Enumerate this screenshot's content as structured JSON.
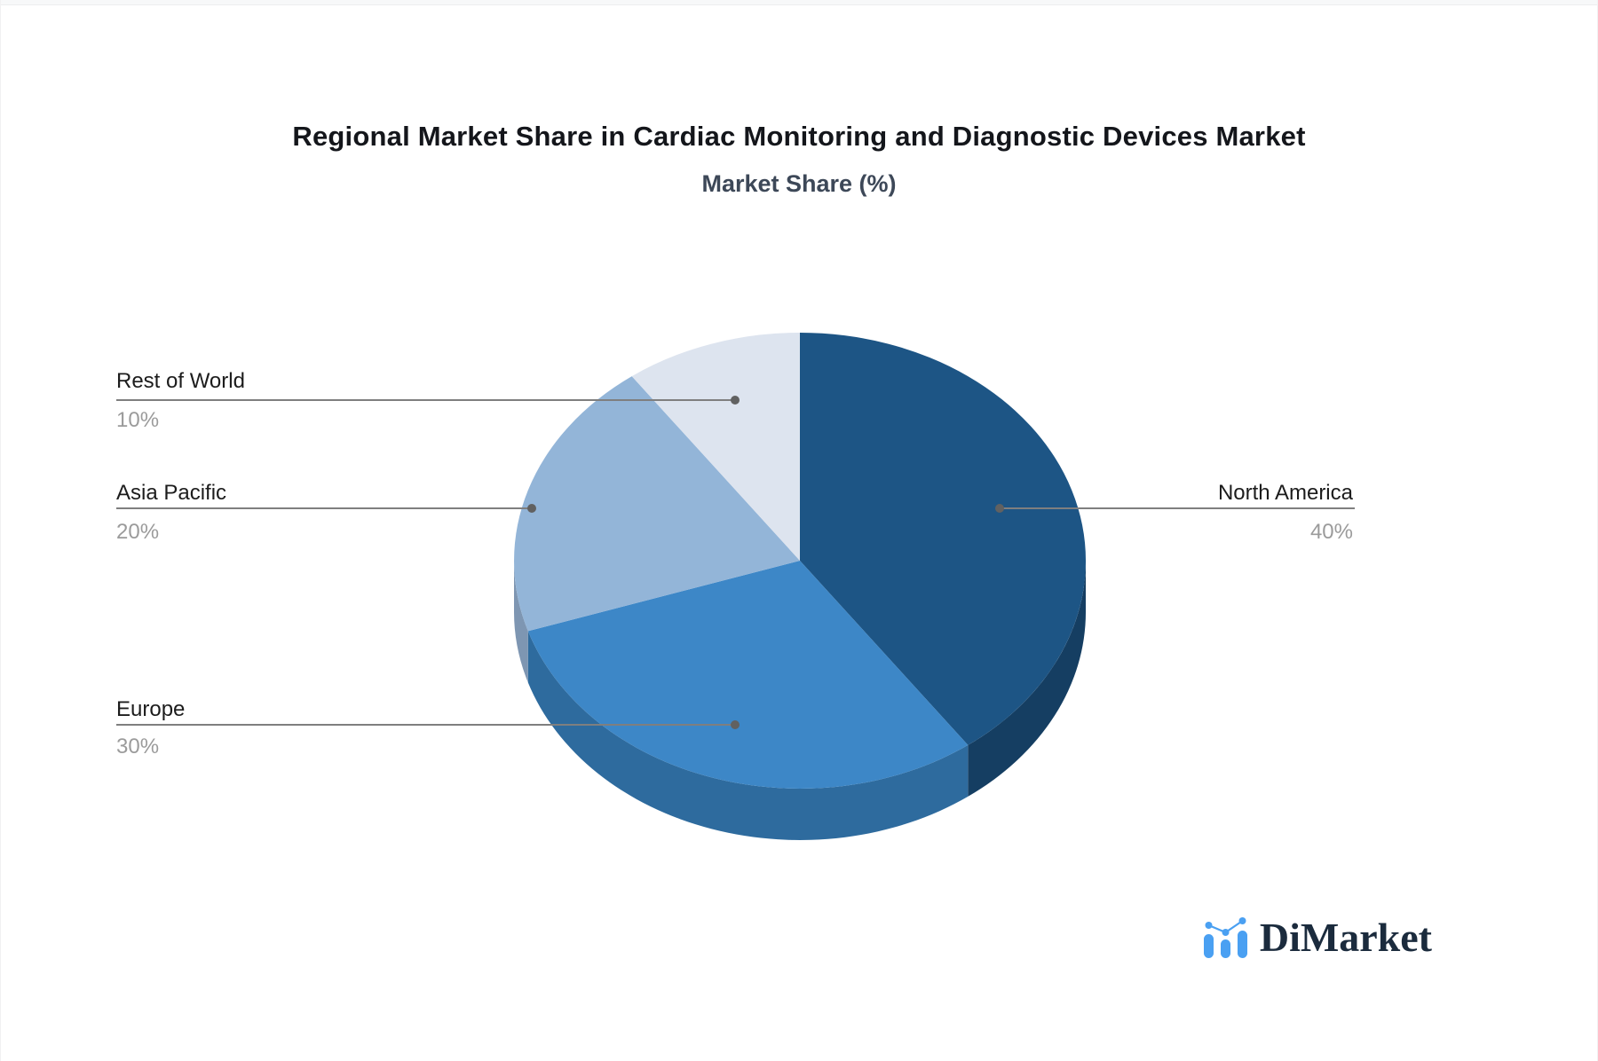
{
  "header": {
    "title": "Regional Market Share in Cardiac Monitoring and Diagnostic Devices Market",
    "subtitle": "Market Share (%)"
  },
  "chart_data": {
    "type": "pie",
    "title": "Regional Market Share in Cardiac Monitoring and Diagnostic Devices Market",
    "subtitle": "Market Share (%)",
    "unit": "%",
    "labels": [
      "North America",
      "Europe",
      "Asia Pacific",
      "Rest of World"
    ],
    "values": [
      40,
      30,
      20,
      10
    ],
    "value_texts": [
      "40%",
      "30%",
      "20%",
      "10%"
    ],
    "slice_colors": [
      "#1d5585",
      "#3d87c7",
      "#93b5d8",
      "#dde4ef"
    ],
    "side_colors": [
      "#153e62",
      "#2e6b9e",
      "#7e96b2",
      "#c5cedd"
    ],
    "start_angle": "12 o'clock",
    "direction": "clockwise",
    "style": "3d",
    "leader_line_color": "#7f7f7f",
    "legend_position": "callout-labels"
  },
  "callouts": [
    {
      "label": "Rest of World",
      "value": "10%"
    },
    {
      "label": "Asia Pacific",
      "value": "20%"
    },
    {
      "label": "Europe",
      "value": "30%"
    },
    {
      "label": "North America",
      "value": "40%"
    }
  ],
  "logo": {
    "text": "DiMarket",
    "icon": "bar-line-chart-icon",
    "icon_color": "#4aa0f2",
    "text_color": "#1b2b3d"
  }
}
